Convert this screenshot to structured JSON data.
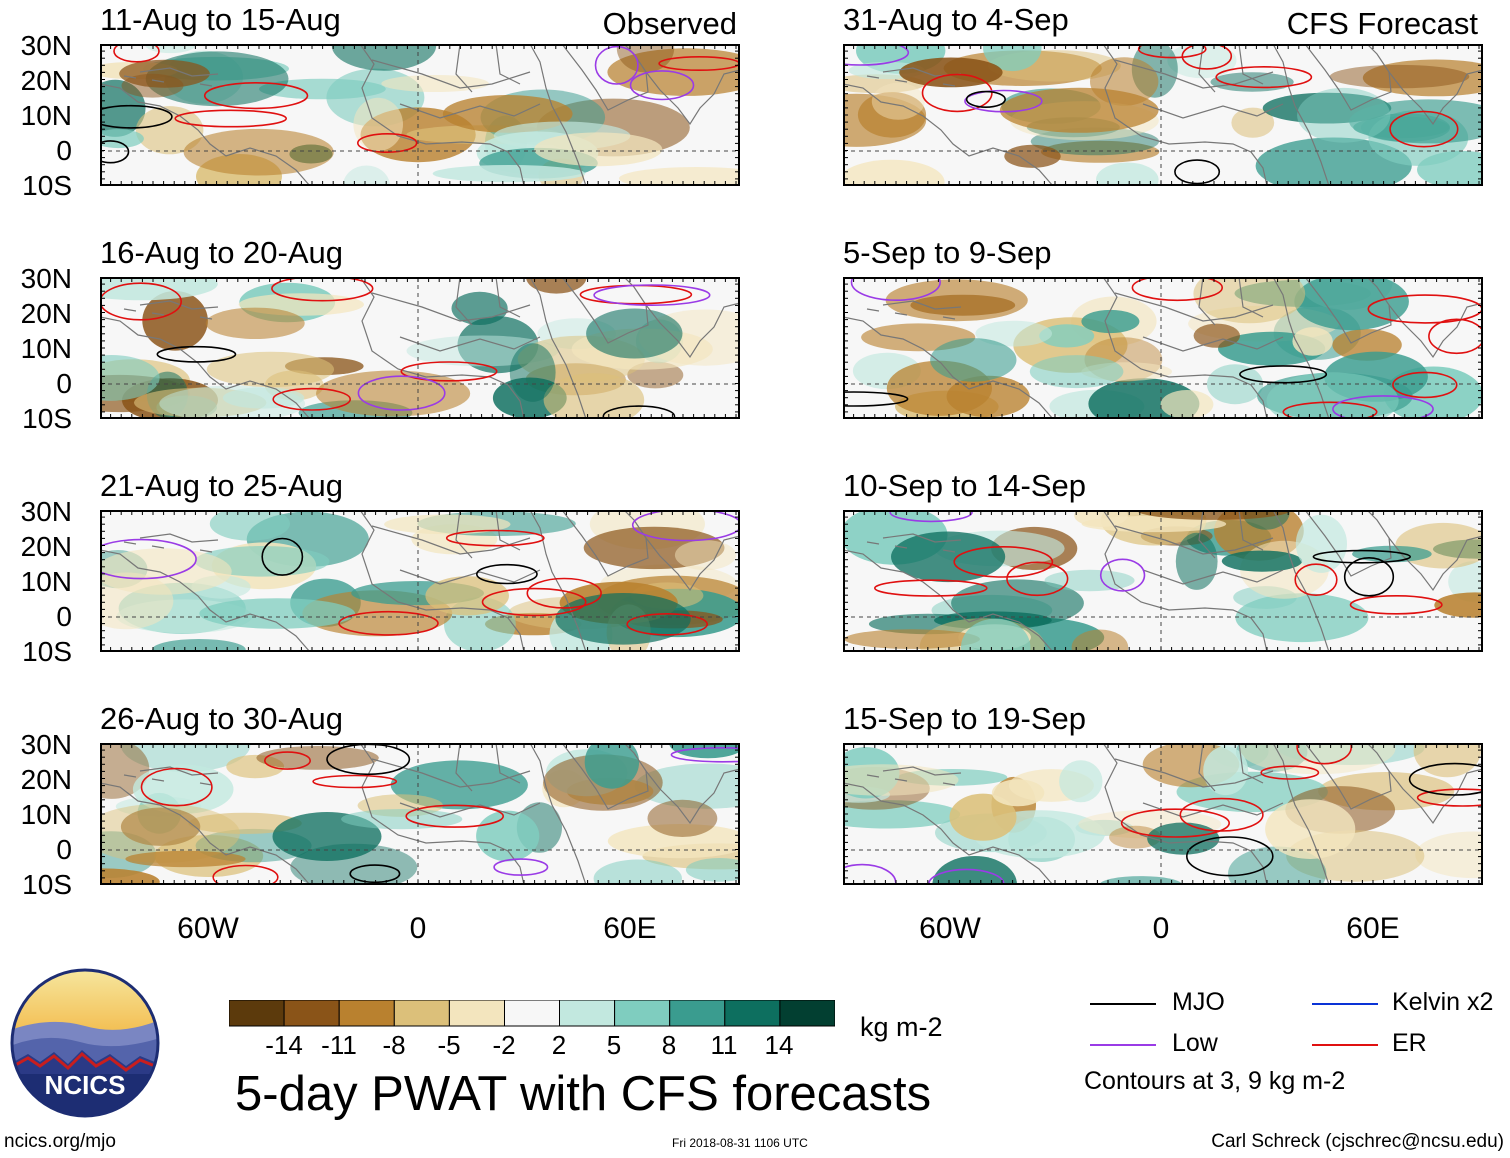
{
  "left_column_tag": "Observed",
  "right_column_tag": "CFS Forecast",
  "panels": [
    {
      "title": "11-Aug to 15-Aug"
    },
    {
      "title": "16-Aug to 20-Aug"
    },
    {
      "title": "21-Aug to 25-Aug"
    },
    {
      "title": "26-Aug to 30-Aug"
    },
    {
      "title": "31-Aug to 4-Sep"
    },
    {
      "title": "5-Sep to 9-Sep"
    },
    {
      "title": "10-Sep to 14-Sep"
    },
    {
      "title": "15-Sep to 19-Sep"
    }
  ],
  "lat_labels": [
    "30N",
    "20N",
    "10N",
    "0",
    "10S"
  ],
  "lon_labels": [
    "60W",
    "0",
    "60E"
  ],
  "colorbar": {
    "ticks": [
      "-14",
      "-11",
      "-8",
      "-5",
      "-2",
      "2",
      "5",
      "8",
      "11",
      "14"
    ],
    "units": "kg m-2",
    "colors": [
      "#5c3a0c",
      "#8a5418",
      "#b9812f",
      "#dcc07a",
      "#f3e5be",
      "#f7f7f7",
      "#c2e8df",
      "#7fcdbf",
      "#3a9c8f",
      "#0d6f5f",
      "#023f31"
    ]
  },
  "legend": {
    "items": [
      {
        "label": "MJO",
        "color": "#000000"
      },
      {
        "label": "Kelvin x2",
        "color": "#0a33d6"
      },
      {
        "label": "Low",
        "color": "#9a3be6"
      },
      {
        "label": "ER",
        "color": "#e01010"
      }
    ],
    "note": "Contours at 3, 9 kg m-2"
  },
  "main_title": "5-day PWAT with CFS forecasts",
  "logo_text": "NCICS",
  "footer": {
    "left": "ncics.org/mjo",
    "center": "Fri 2018-08-31 1106 UTC",
    "right": "Carl Schreck (cjschrec@ncsu.edu)"
  }
}
